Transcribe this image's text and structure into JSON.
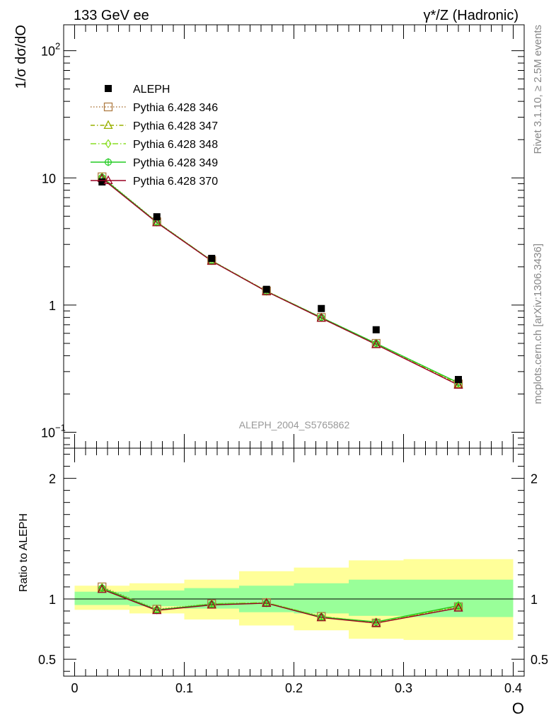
{
  "chart_data": {
    "type": "line",
    "header_left": "133 GeV ee",
    "header_right": "γ*/Z (Hadronic)",
    "watermark": "ALEPH_2004_S5765862",
    "side_text_top": "Rivet 3.1.10, ≥ 2.5M events",
    "side_text_bottom": "mcplots.cern.ch [arXiv:1306.3436]",
    "xlabel": "O",
    "ylabel_main": "1/σ  dσ/dO",
    "ylabel_ratio": "Ratio to ALEPH",
    "xlim": [
      -0.01,
      0.41
    ],
    "ylim_main_log": [
      0.075,
      160
    ],
    "ylim_ratio": [
      0.36,
      2.25
    ],
    "x_ticks": [
      {
        "v": 0,
        "label": "0"
      },
      {
        "v": 0.1,
        "label": "0.1"
      },
      {
        "v": 0.2,
        "label": "0.2"
      },
      {
        "v": 0.3,
        "label": "0.3"
      },
      {
        "v": 0.4,
        "label": "0.4"
      }
    ],
    "y_ticks_main": [
      {
        "v": 0.1,
        "base": "10",
        "exp": "−1"
      },
      {
        "v": 1,
        "base": "1",
        "exp": ""
      },
      {
        "v": 10,
        "base": "10",
        "exp": ""
      },
      {
        "v": 100,
        "base": "10",
        "exp": "2"
      }
    ],
    "y_ticks_ratio": [
      {
        "v": 0.5,
        "label": "0.5"
      },
      {
        "v": 1,
        "label": "1"
      },
      {
        "v": 2,
        "label": "2"
      }
    ],
    "data_points": {
      "name": "ALEPH",
      "x": [
        0.025,
        0.075,
        0.125,
        0.175,
        0.225,
        0.275,
        0.35
      ],
      "y": [
        9.3,
        4.95,
        2.33,
        1.33,
        0.94,
        0.64,
        0.26
      ]
    },
    "bins": [
      {
        "x0": 0.0,
        "x1": 0.05,
        "stat": [
          0.95,
          1.06
        ],
        "total": [
          0.91,
          1.11
        ]
      },
      {
        "x0": 0.05,
        "x1": 0.1,
        "stat": [
          0.94,
          1.07
        ],
        "total": [
          0.88,
          1.13
        ]
      },
      {
        "x0": 0.1,
        "x1": 0.15,
        "stat": [
          0.92,
          1.09
        ],
        "total": [
          0.83,
          1.16
        ]
      },
      {
        "x0": 0.15,
        "x1": 0.2,
        "stat": [
          0.89,
          1.11
        ],
        "total": [
          0.78,
          1.23
        ]
      },
      {
        "x0": 0.2,
        "x1": 0.25,
        "stat": [
          0.88,
          1.13
        ],
        "total": [
          0.74,
          1.26
        ]
      },
      {
        "x0": 0.25,
        "x1": 0.3,
        "stat": [
          0.86,
          1.16
        ],
        "total": [
          0.67,
          1.32
        ]
      },
      {
        "x0": 0.3,
        "x1": 0.4,
        "stat": [
          0.85,
          1.16
        ],
        "total": [
          0.66,
          1.33
        ]
      }
    ],
    "mc_x": [
      0.025,
      0.075,
      0.125,
      0.175,
      0.225,
      0.275,
      0.35
    ],
    "series": [
      {
        "name": "Pythia 6.428 346",
        "color": "#b07d45",
        "marker": "square-open",
        "dash": "1.5,2.5",
        "values": [
          10.2,
          4.52,
          2.24,
          1.29,
          0.8,
          0.5,
          0.24
        ],
        "ratio": [
          1.1,
          0.915,
          0.96,
          0.97,
          0.855,
          0.8,
          0.935
        ]
      },
      {
        "name": "Pythia 6.428 347",
        "color": "#99b000",
        "marker": "triangle-open",
        "dash": "6,3,1.5,3",
        "values": [
          10.1,
          4.47,
          2.23,
          1.28,
          0.79,
          0.49,
          0.24
        ],
        "ratio": [
          1.09,
          0.91,
          0.955,
          0.965,
          0.85,
          0.8,
          0.94
        ]
      },
      {
        "name": "Pythia 6.428 348",
        "color": "#88dd22",
        "marker": "diamond-open",
        "dash": "8,3,1.5,3",
        "values": [
          10.1,
          4.5,
          2.24,
          1.29,
          0.8,
          0.5,
          0.245
        ],
        "ratio": [
          1.095,
          0.91,
          0.96,
          0.97,
          0.855,
          0.805,
          0.945
        ]
      },
      {
        "name": "Pythia 6.428 349",
        "color": "#22cc22",
        "marker": "circle-cross",
        "dash": "",
        "values": [
          10.1,
          4.48,
          2.23,
          1.28,
          0.8,
          0.5,
          0.245
        ],
        "ratio": [
          1.09,
          0.91,
          0.955,
          0.965,
          0.85,
          0.81,
          0.945
        ]
      },
      {
        "name": "Pythia 6.428 370",
        "color": "#990022",
        "marker": "triangle-open",
        "dash": "",
        "values": [
          9.9,
          4.45,
          2.22,
          1.28,
          0.79,
          0.49,
          0.235
        ],
        "ratio": [
          1.08,
          0.905,
          0.95,
          0.965,
          0.845,
          0.8,
          0.925
        ]
      }
    ],
    "band_colors": {
      "total": "#ffff99",
      "stat": "#99ff99"
    }
  }
}
